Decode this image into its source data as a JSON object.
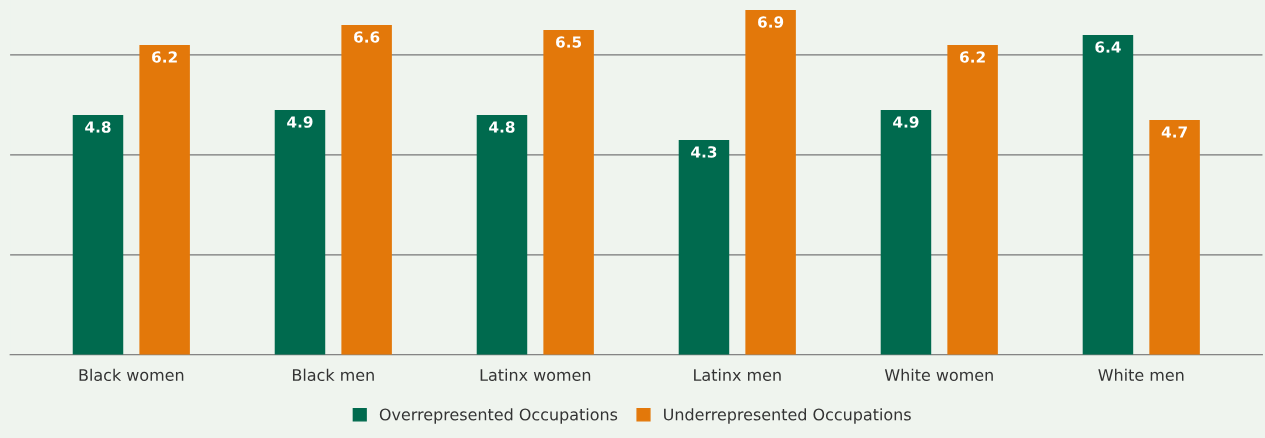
{
  "chart_data": {
    "type": "bar",
    "categories": [
      "Black women",
      "Black men",
      "Latinx women",
      "Latinx men",
      "White women",
      "White men"
    ],
    "series": [
      {
        "name": "Overrepresented Occupations",
        "color": "#006a4e",
        "values": [
          4.8,
          4.9,
          4.8,
          4.3,
          4.9,
          6.4
        ]
      },
      {
        "name": "Underrepresented Occupations",
        "color": "#e3780a",
        "values": [
          6.2,
          6.6,
          6.5,
          6.9,
          6.2,
          4.7
        ]
      }
    ],
    "ylim": [
      0,
      7.1
    ],
    "yticks": [
      {
        "value": 0,
        "label": null
      },
      {
        "value": 2,
        "label": null
      },
      {
        "value": 4,
        "label": null
      },
      {
        "value": 6,
        "label": null
      }
    ],
    "tick_labels": "x",
    "grid": "y",
    "data_labels": true,
    "legend": "bottom"
  }
}
